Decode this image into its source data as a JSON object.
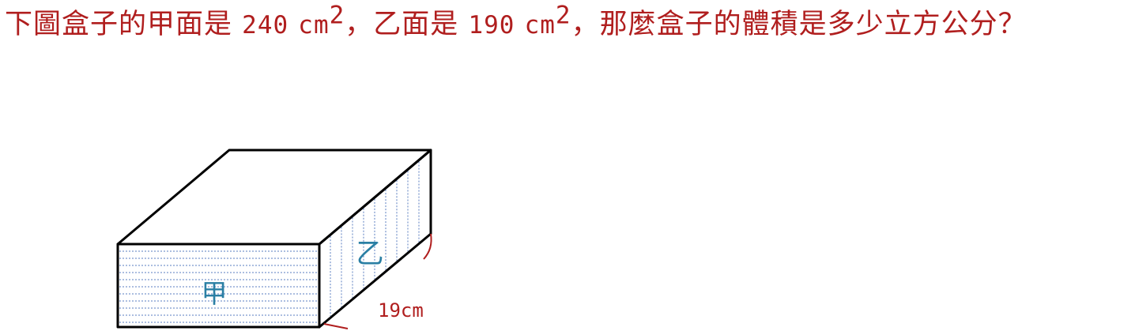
{
  "question": {
    "part1": "下圖盒子的甲面是",
    "area_a": "240",
    "unit_a": "cm",
    "exp_a": "2",
    "part2": "，乙面是",
    "area_b": "190",
    "unit_b": "cm",
    "exp_b": "2",
    "part3": "，那麼盒子的體積是多少立方公分？"
  },
  "figure": {
    "face_front_label": "甲",
    "face_side_label": "乙",
    "depth_label": "19cm"
  },
  "colors": {
    "question_text": "#b01e1e",
    "face_label": "#2a7fa4",
    "dimension_label": "#b01e1e",
    "hatch": "#5a7ec0",
    "outline": "#000000"
  }
}
